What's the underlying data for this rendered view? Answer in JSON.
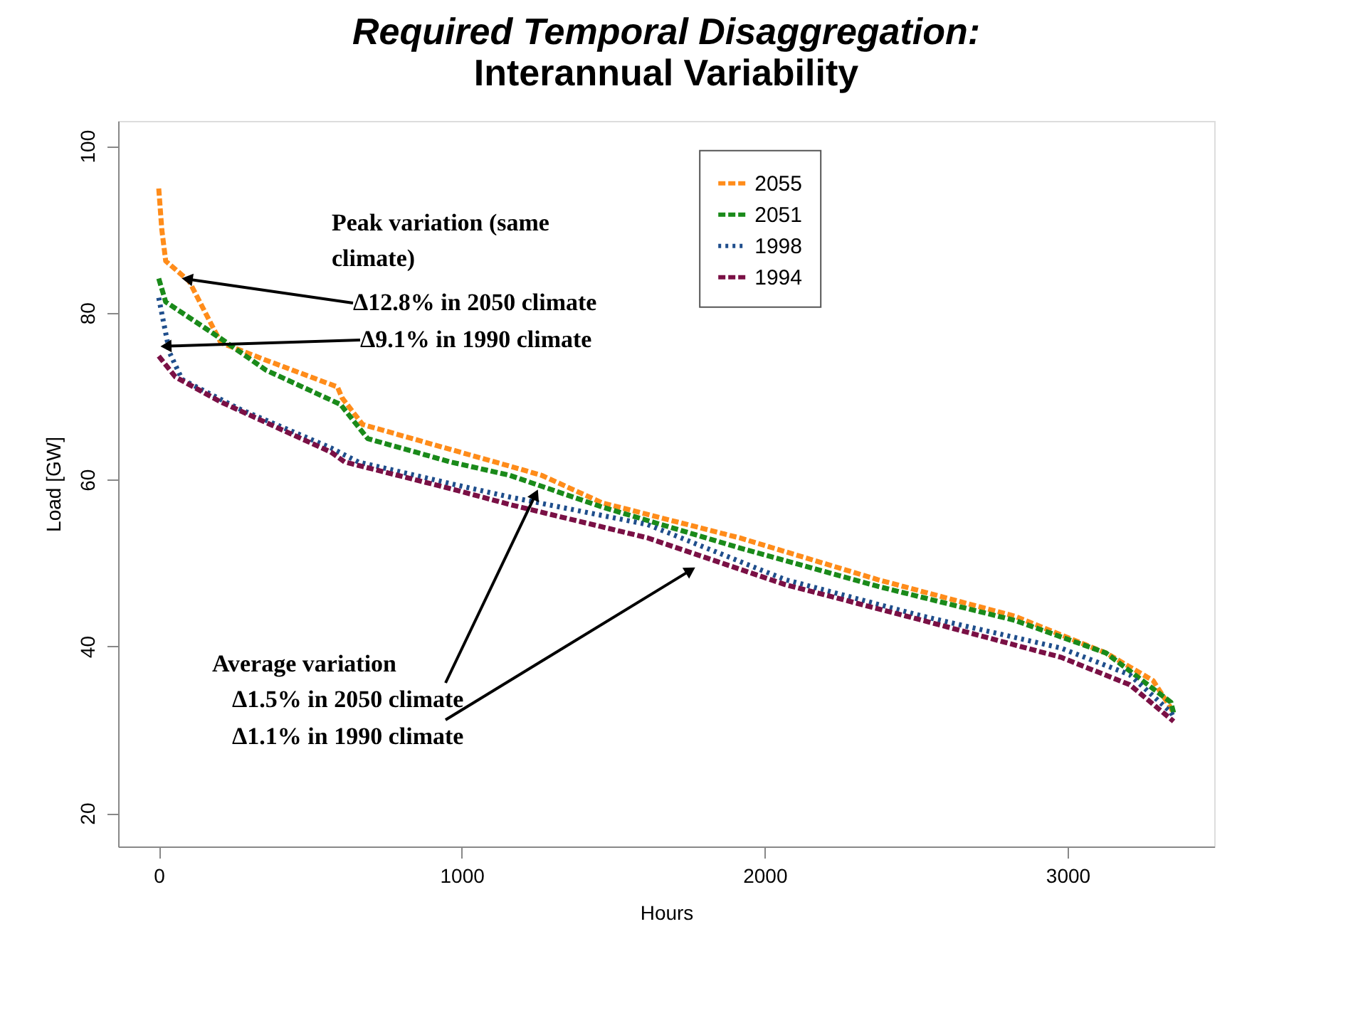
{
  "chart_data": {
    "type": "line",
    "title": "Required Temporal Disaggregation:",
    "subtitle": "Interannual Variability",
    "xlabel": "Hours",
    "ylabel": "Load [GW]",
    "xlim": [
      -134,
      3484
    ],
    "ylim": [
      16,
      103
    ],
    "xticks": [
      0,
      1000,
      2000,
      3000
    ],
    "yticks": [
      20,
      40,
      60,
      80,
      100
    ],
    "grid": false,
    "legend": "top right",
    "marker": "none",
    "series": [
      {
        "name": "2055",
        "color": "#ff8c1a",
        "line_style": "dashed",
        "x": [
          0,
          10,
          23,
          100,
          205,
          355,
          590,
          605,
          673,
          886,
          1159,
          1264,
          1464,
          1918,
          2373,
          2827,
          3127,
          3282,
          3341,
          3350
        ],
        "values": [
          94.9,
          90,
          86.2,
          83.8,
          76.4,
          74.3,
          71.1,
          69.8,
          66.6,
          64.4,
          61.6,
          60.5,
          57.2,
          53,
          48,
          43.6,
          39.2,
          35.9,
          32.6,
          32
        ]
      },
      {
        "name": "2051",
        "color": "#1a8a1a",
        "line_style": "dashed",
        "x": [
          0,
          23,
          205,
          355,
          600,
          690,
          964,
          1159,
          1464,
          1918,
          2373,
          2827,
          3127,
          3341,
          3350
        ],
        "values": [
          84.1,
          81.3,
          76.9,
          73.1,
          69,
          64.9,
          62.1,
          60.5,
          56.7,
          51.8,
          47.2,
          43.1,
          39.2,
          33.3,
          32
        ]
      },
      {
        "name": "1998",
        "color": "#1f4e8c",
        "line_style": "dotted",
        "x": [
          0,
          14,
          36,
          77,
          264,
          568,
          659,
          964,
          1159,
          1614,
          2068,
          2523,
          2977,
          3205,
          3341,
          3350
        ],
        "values": [
          81.8,
          79.2,
          75.2,
          72,
          68.5,
          63.8,
          62.1,
          59.5,
          57.9,
          54.6,
          48,
          43.6,
          39.8,
          36.6,
          32.1,
          31.5
        ]
      },
      {
        "name": "1994",
        "color": "#7a1045",
        "line_style": "dashed",
        "x": [
          0,
          55,
          205,
          568,
          614,
          964,
          1159,
          1614,
          2068,
          2523,
          2977,
          3205,
          3350
        ],
        "values": [
          74.8,
          72.3,
          69.3,
          63.3,
          62.1,
          58.9,
          57,
          53,
          47.4,
          43.1,
          38.7,
          35.4,
          31
        ]
      }
    ],
    "annotations": [
      "Peak variation (same climate)",
      {
        "text": "Δ12.8% in 2050 climate",
        "x": 100,
        "y": 84
      },
      {
        "text": "Δ9.1% in 1990 climate",
        "x": 30,
        "y": 76
      },
      "Average variation",
      {
        "text": "Δ1.5% in 2050 climate",
        "x": 1241,
        "y": 58
      },
      {
        "text": "Δ1.1% in 1990 climate",
        "x": 1750,
        "y": 49
      }
    ]
  }
}
